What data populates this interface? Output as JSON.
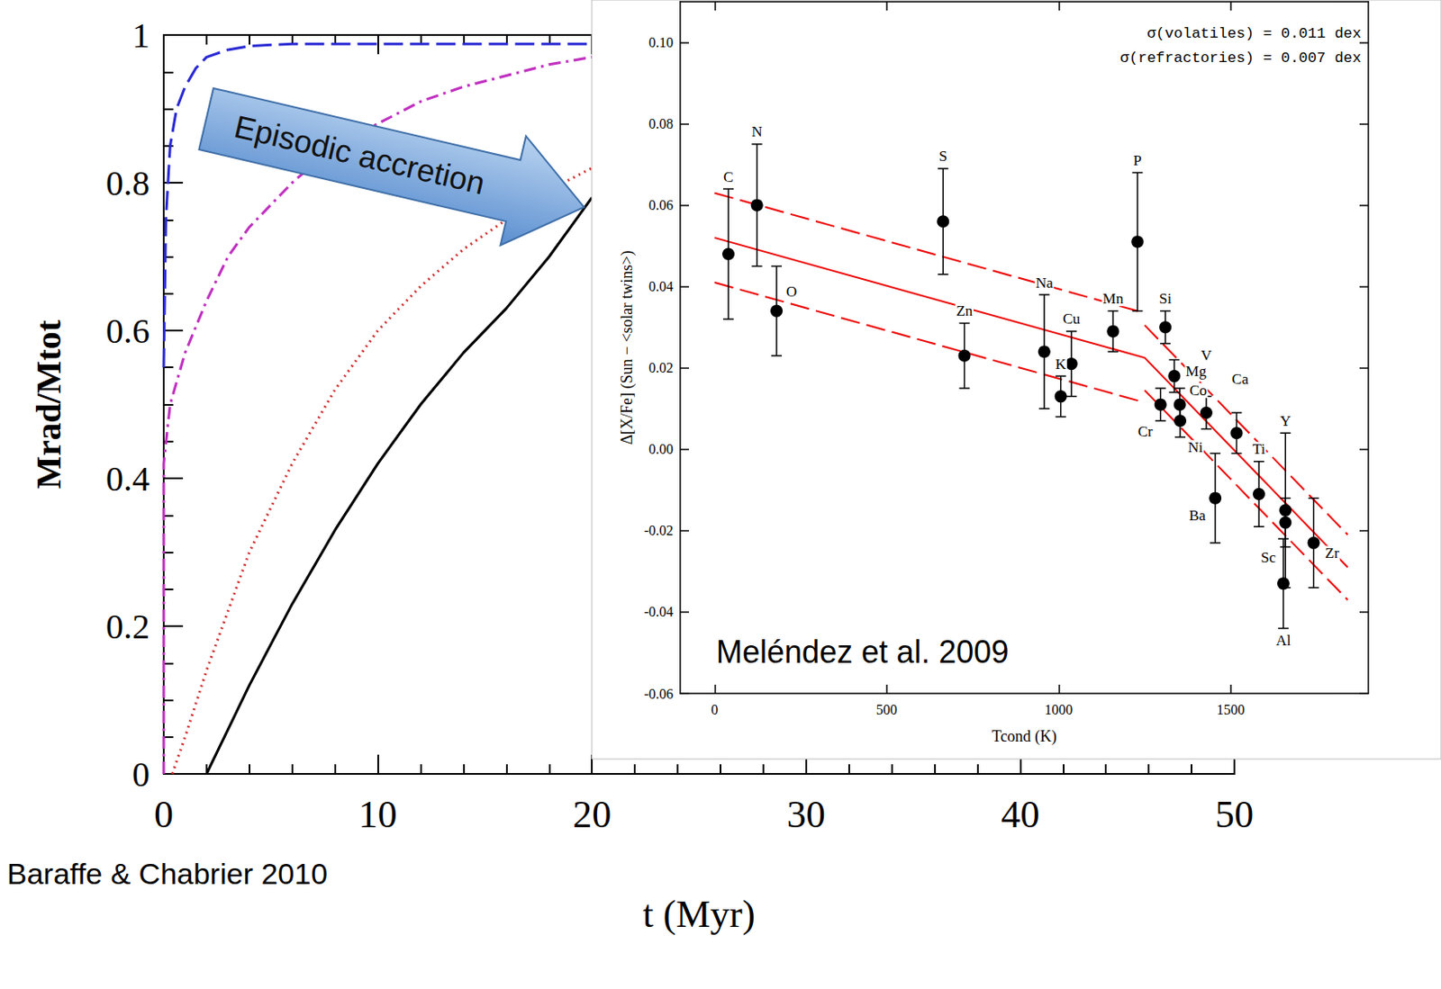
{
  "chart_data": [
    {
      "type": "line",
      "x_label": "t (Myr)",
      "y_label": "Mrad/Mtot",
      "annotations": [
        "Baraffe & Chabrier 2010",
        "Episodic accretion"
      ],
      "xlim": [
        0,
        50
      ],
      "xticks": [
        0,
        10,
        20,
        30,
        40,
        50
      ],
      "ylim": [
        0,
        1
      ],
      "yticks": [
        0,
        0.2,
        0.4,
        0.6,
        0.8,
        1
      ],
      "grid": false,
      "series": [
        {
          "color": "#2a2ad4",
          "line_style": "dashed",
          "x": [
            0,
            0.1,
            0.3,
            0.6,
            1,
            1.5,
            2,
            3,
            4,
            6,
            10,
            20
          ],
          "values": [
            0.55,
            0.75,
            0.85,
            0.9,
            0.93,
            0.955,
            0.97,
            0.98,
            0.985,
            0.988,
            0.988,
            0.988
          ]
        },
        {
          "color": "#c030c0",
          "line_style": "dashdot",
          "x": [
            0,
            0,
            0.3,
            1,
            2,
            3,
            4,
            6,
            8,
            10,
            12,
            14,
            16,
            18,
            20
          ],
          "values": [
            0,
            0.42,
            0.5,
            0.57,
            0.64,
            0.7,
            0.74,
            0.8,
            0.85,
            0.88,
            0.91,
            0.93,
            0.945,
            0.96,
            0.97
          ]
        },
        {
          "color": "#d03030",
          "line_style": "dotted",
          "x": [
            0.4,
            1,
            2,
            4,
            6,
            8,
            10,
            12,
            14,
            16,
            18,
            20
          ],
          "values": [
            0,
            0.05,
            0.14,
            0.3,
            0.42,
            0.52,
            0.6,
            0.66,
            0.71,
            0.75,
            0.79,
            0.82
          ]
        },
        {
          "color": "#000000",
          "line_style": "solid",
          "x": [
            2,
            3,
            4,
            6,
            8,
            10,
            12,
            14,
            16,
            18,
            20
          ],
          "values": [
            0,
            0.06,
            0.12,
            0.23,
            0.33,
            0.42,
            0.5,
            0.57,
            0.63,
            0.7,
            0.78
          ]
        }
      ]
    },
    {
      "type": "scatter",
      "x_label": "Tcond (K)",
      "y_label": "Δ[X/Fe] (Sun − <solar twins>)",
      "annotations": [
        "σ(volatiles) = 0.011 dex",
        "σ(refractories) = 0.007 dex",
        "Meléndez et al. 2009"
      ],
      "xlim": [
        -100,
        1900
      ],
      "xticks": [
        0,
        500,
        1000,
        1500
      ],
      "ylim": [
        -0.06,
        0.11
      ],
      "yticks": [
        -0.06,
        -0.04,
        -0.02,
        {
          "value": 0,
          "label": "0.00"
        },
        0.02,
        0.04,
        0.06,
        0.08,
        {
          "value": 0.1,
          "label": "0.10"
        }
      ],
      "grid": false,
      "color": "#000000",
      "marker": "circle",
      "labels": [
        "C",
        "N",
        "O",
        "S",
        "Zn",
        "Na",
        "K",
        "Cu",
        "Mn",
        "P",
        "Cr",
        "Si",
        "Mg",
        "Co",
        "Ni",
        "V",
        "Ba",
        "Ca",
        "Ti",
        "Y",
        "Sc",
        "Al",
        "Zr"
      ],
      "x": [
        40,
        123,
        180,
        664,
        726,
        958,
        1006,
        1037,
        1158,
        1229,
        1296,
        1310,
        1336,
        1352,
        1353,
        1429,
        1455,
        1517,
        1582,
        1659,
        1659,
        1653,
        1741
      ],
      "values": [
        0.048,
        0.06,
        0.034,
        0.056,
        0.023,
        0.024,
        0.013,
        0.021,
        0.029,
        0.051,
        0.011,
        0.03,
        0.018,
        0.011,
        0.007,
        0.009,
        -0.012,
        0.004,
        -0.011,
        -0.015,
        -0.018,
        -0.033,
        -0.023
      ],
      "errors": [
        0.016,
        0.015,
        0.011,
        0.013,
        0.008,
        0.014,
        0.005,
        0.008,
        0.005,
        0.017,
        0.004,
        0.004,
        0.004,
        0.004,
        0.004,
        0.004,
        0.011,
        0.005,
        0.008,
        0.019,
        0.006,
        0.011,
        0.011
      ],
      "lines": [
        {
          "color": "#ee0000",
          "line_style": "solid",
          "x": [
            0,
            1250,
            1840
          ],
          "values": [
            0.052,
            0.0225,
            -0.029
          ]
        },
        {
          "color": "#ee0000",
          "line_style": "dashed",
          "x": [
            0,
            1250,
            1250,
            1250,
            1840
          ],
          "values": [
            0.063,
            0.0335,
            null,
            0.0305,
            -0.021
          ]
        },
        {
          "color": "#ee0000",
          "line_style": "dashed",
          "x": [
            0,
            1250,
            1250,
            1250,
            1840
          ],
          "values": [
            0.041,
            0.0115,
            null,
            0.0145,
            -0.037
          ]
        }
      ]
    }
  ]
}
